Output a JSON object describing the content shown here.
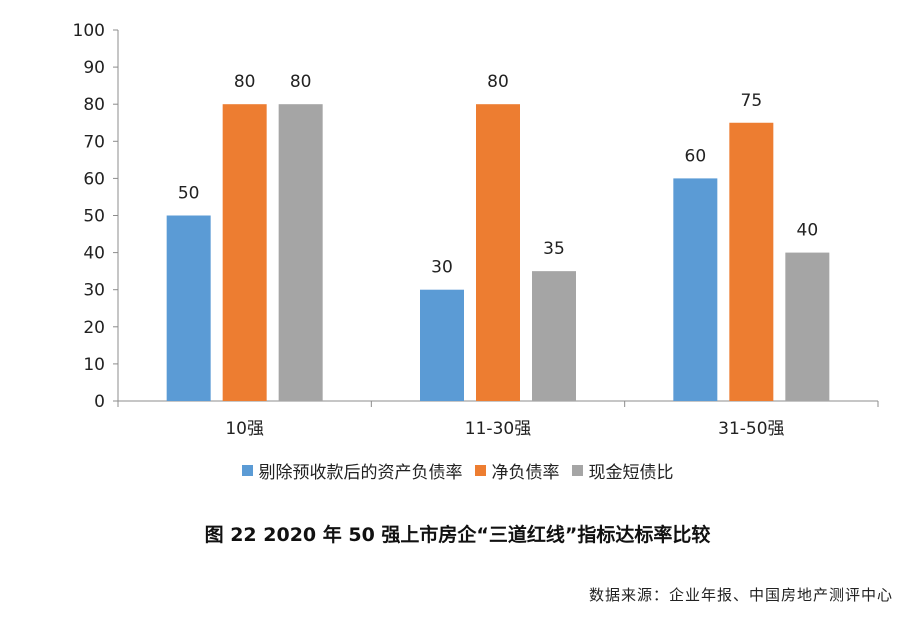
{
  "chart_data": {
    "type": "bar",
    "categories": [
      "10强",
      "11-30强",
      "31-50强"
    ],
    "series": [
      {
        "name": "剔除预收款后的资产负债率",
        "values": [
          50,
          30,
          60
        ],
        "color": "#5b9bd5"
      },
      {
        "name": "净负债率",
        "values": [
          80,
          80,
          75
        ],
        "color": "#ed7d31"
      },
      {
        "name": "现金短债比",
        "values": [
          80,
          35,
          40
        ],
        "color": "#a5a5a5"
      }
    ],
    "ylim": [
      0,
      100
    ],
    "yticks": [
      0,
      10,
      20,
      30,
      40,
      50,
      60,
      70,
      80,
      90,
      100
    ],
    "grid": false,
    "legend_position": "bottom",
    "title": "图 22  2020 年 50 强上市房企“三道红线”指标达标率比较"
  },
  "source_note": "数据来源：企业年报、中国房地产测评中心"
}
